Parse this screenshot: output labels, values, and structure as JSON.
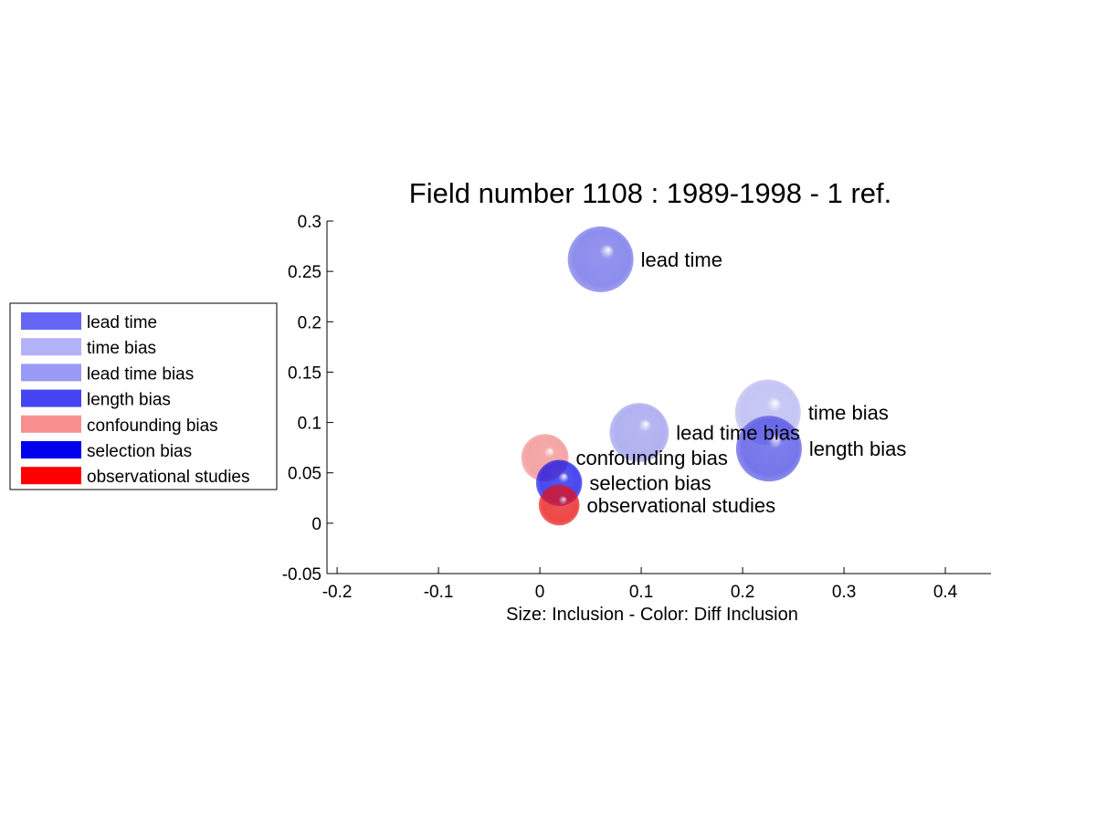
{
  "chart_data": {
    "type": "scatter",
    "title": "Field number 1108 : 1989-1998  - 1 ref.",
    "xlabel": "Size: Inclusion - Color: Diff Inclusion",
    "ylabel": "",
    "xlim": [
      -0.21,
      0.445
    ],
    "ylim": [
      -0.05,
      0.3
    ],
    "xticks": [
      -0.2,
      -0.1,
      0,
      0.1,
      0.2,
      0.3,
      0.4
    ],
    "xtick_labels": [
      "-0.2",
      "-0.1",
      "0",
      "0.1",
      "0.2",
      "0.3",
      "0.4"
    ],
    "yticks": [
      -0.05,
      0,
      0.05,
      0.1,
      0.15,
      0.2,
      0.25,
      0.3
    ],
    "ytick_labels": [
      "-0.05",
      "0",
      "0.05",
      "0.1",
      "0.15",
      "0.2",
      "0.25",
      "0.3"
    ],
    "grid": false,
    "legend_position": "left",
    "points": [
      {
        "label": "lead time",
        "x": 0.06,
        "y": 0.262,
        "size": 1.0,
        "color": "#6a6ae8"
      },
      {
        "label": "time bias",
        "x": 0.225,
        "y": 0.11,
        "size": 1.0,
        "color": "#b4b4f0"
      },
      {
        "label": "lead time bias",
        "x": 0.098,
        "y": 0.09,
        "size": 0.9,
        "color": "#9a9aec"
      },
      {
        "label": "length bias",
        "x": 0.226,
        "y": 0.074,
        "size": 1.0,
        "color": "#4c4ce4"
      },
      {
        "label": "confounding bias",
        "x": 0.005,
        "y": 0.065,
        "size": 0.72,
        "color": "#f08a8a"
      },
      {
        "label": "selection bias",
        "x": 0.019,
        "y": 0.04,
        "size": 0.7,
        "color": "#1010e8"
      },
      {
        "label": "observational studies",
        "x": 0.019,
        "y": 0.018,
        "size": 0.62,
        "color": "#e81010"
      }
    ]
  },
  "legend": {
    "items": [
      {
        "label": "lead time",
        "color": "#6666f4"
      },
      {
        "label": "time bias",
        "color": "#b2b2f8"
      },
      {
        "label": "lead time bias",
        "color": "#9999f6"
      },
      {
        "label": "length bias",
        "color": "#4444f2"
      },
      {
        "label": "confounding bias",
        "color": "#f89090"
      },
      {
        "label": "selection bias",
        "color": "#0000ee"
      },
      {
        "label": "observational studies",
        "color": "#ff0000"
      }
    ]
  }
}
